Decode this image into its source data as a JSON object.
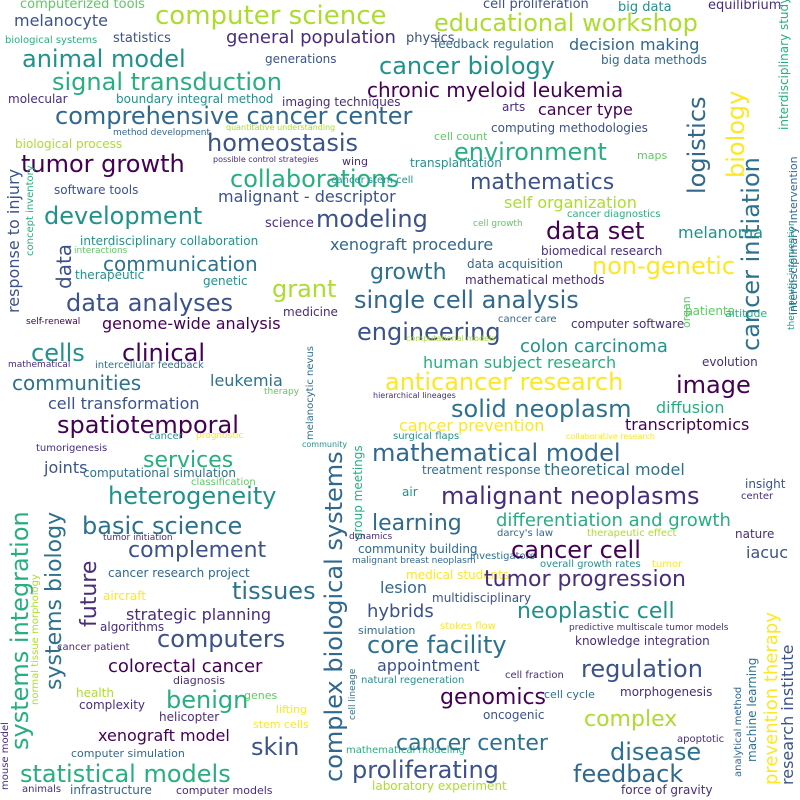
{
  "palette": {
    "dark_purple": "#440154",
    "indigo": "#472d7b",
    "blue": "#3b528b",
    "slate_blue": "#31688e",
    "teal_blue": "#2c728e",
    "teal": "#21918c",
    "green_teal": "#28ae80",
    "green": "#5ec962",
    "lime": "#addc30",
    "yellow": "#fde725"
  },
  "words": [
    {
      "text": "computerized tools"
    },
    {
      "text": "computer science"
    },
    {
      "text": "big data"
    },
    {
      "text": "cell proliferation"
    },
    {
      "text": "equilibrium"
    },
    {
      "text": "melanocyte"
    },
    {
      "text": "educational workshop"
    },
    {
      "text": "biological systems"
    },
    {
      "text": "statistics"
    },
    {
      "text": "general population"
    },
    {
      "text": "physics"
    },
    {
      "text": "feedback regulation"
    },
    {
      "text": "interdisciplinary study"
    },
    {
      "text": "animal model"
    },
    {
      "text": "decision making"
    },
    {
      "text": "generations"
    },
    {
      "text": "cancer biology"
    },
    {
      "text": "big data methods"
    },
    {
      "text": "signal transduction"
    },
    {
      "text": "chronic myeloid leukemia"
    },
    {
      "text": "molecular"
    },
    {
      "text": "boundary integral method"
    },
    {
      "text": "imaging techniques"
    },
    {
      "text": "comprehensive cancer center"
    },
    {
      "text": "arts"
    },
    {
      "text": "cancer type"
    },
    {
      "text": "quantitative understanding"
    },
    {
      "text": "method development"
    },
    {
      "text": "cell count"
    },
    {
      "text": "computing methodologies"
    },
    {
      "text": "biological process"
    },
    {
      "text": "homeostasis"
    },
    {
      "text": "environment"
    },
    {
      "text": "biology"
    },
    {
      "text": "maps"
    },
    {
      "text": "tumor growth"
    },
    {
      "text": "possible control strategies"
    },
    {
      "text": "wing"
    },
    {
      "text": "transplantation"
    },
    {
      "text": "logistics"
    },
    {
      "text": "cancer initiation"
    },
    {
      "text": "interdisciplinary intervention"
    },
    {
      "text": "collaborations"
    },
    {
      "text": "cancer stem cell"
    },
    {
      "text": "mathematics"
    },
    {
      "text": "response to injury"
    },
    {
      "text": "software tools"
    },
    {
      "text": "malignant - descriptor"
    },
    {
      "text": "concept inventory"
    },
    {
      "text": "self organization"
    },
    {
      "text": "development"
    },
    {
      "text": "modeling"
    },
    {
      "text": "cancer diagnostics"
    },
    {
      "text": "data set"
    },
    {
      "text": "science"
    },
    {
      "text": "cell growth"
    },
    {
      "text": "interdisciplinary collaboration"
    },
    {
      "text": "xenograft procedure"
    },
    {
      "text": "melanoma"
    },
    {
      "text": "interactions"
    },
    {
      "text": "biomedical research"
    },
    {
      "text": "communication"
    },
    {
      "text": "non-genetic"
    },
    {
      "text": "data"
    },
    {
      "text": "therapeutic"
    },
    {
      "text": "genetic"
    },
    {
      "text": "growth"
    },
    {
      "text": "data acquisition"
    },
    {
      "text": "grant"
    },
    {
      "text": "mathematical methods"
    },
    {
      "text": "organ"
    },
    {
      "text": "patients"
    },
    {
      "text": "therapeutic intervention"
    },
    {
      "text": "data analyses"
    },
    {
      "text": "single cell analysis"
    },
    {
      "text": "altitude"
    },
    {
      "text": "genome-wide analysis"
    },
    {
      "text": "self-renewal"
    },
    {
      "text": "medicine"
    },
    {
      "text": "cancer care"
    },
    {
      "text": "computer software"
    },
    {
      "text": "engineering"
    },
    {
      "text": "clinical"
    },
    {
      "text": "cells"
    },
    {
      "text": "computational models"
    },
    {
      "text": "colon carcinoma"
    },
    {
      "text": "mathematical"
    },
    {
      "text": "intercellular feedback"
    },
    {
      "text": "melanocytic nevus"
    },
    {
      "text": "human subject research"
    },
    {
      "text": "evolution"
    },
    {
      "text": "communities"
    },
    {
      "text": "leukemia"
    },
    {
      "text": "anticancer research"
    },
    {
      "text": "image"
    },
    {
      "text": "therapy"
    },
    {
      "text": "hierarchical lineages"
    },
    {
      "text": "cell transformation"
    },
    {
      "text": "complex biological systems"
    },
    {
      "text": "solid neoplasm"
    },
    {
      "text": "diffusion"
    },
    {
      "text": "spatiotemporal"
    },
    {
      "text": "cancer prevention"
    },
    {
      "text": "transcriptomics"
    },
    {
      "text": "surgical flaps"
    },
    {
      "text": "group meetings"
    },
    {
      "text": "cancer"
    },
    {
      "text": "prognostic"
    },
    {
      "text": "collaborative research"
    },
    {
      "text": "tumorigenesis"
    },
    {
      "text": "mathematical model"
    },
    {
      "text": "services"
    },
    {
      "text": "joints"
    },
    {
      "text": "community"
    },
    {
      "text": "theoretical model"
    },
    {
      "text": "computational simulation"
    },
    {
      "text": "classification"
    },
    {
      "text": "treatment response"
    },
    {
      "text": "insight"
    },
    {
      "text": "heterogeneity"
    },
    {
      "text": "air"
    },
    {
      "text": "malignant neoplasms"
    },
    {
      "text": "center"
    },
    {
      "text": "systems integration"
    },
    {
      "text": "basic science"
    },
    {
      "text": "learning"
    },
    {
      "text": "differentiation and growth"
    },
    {
      "text": "nature"
    },
    {
      "text": "tumor initiation"
    },
    {
      "text": "dynamics"
    },
    {
      "text": "darcy's law"
    },
    {
      "text": "therapeutic effect"
    },
    {
      "text": "complement"
    },
    {
      "text": "community building"
    },
    {
      "text": "investigators"
    },
    {
      "text": "cancer cell"
    },
    {
      "text": "iacuc"
    },
    {
      "text": "systems biology"
    },
    {
      "text": "malignant breast neoplasm"
    },
    {
      "text": "overall growth rates"
    },
    {
      "text": "tumor"
    },
    {
      "text": "normal tissue morphology"
    },
    {
      "text": "cancer research project"
    },
    {
      "text": "medical students"
    },
    {
      "text": "tumor progression"
    },
    {
      "text": "future"
    },
    {
      "text": "tissues"
    },
    {
      "text": "lesion"
    },
    {
      "text": "multidisciplinary"
    },
    {
      "text": "aircraft"
    },
    {
      "text": "strategic planning"
    },
    {
      "text": "hybrids"
    },
    {
      "text": "neoplastic cell"
    },
    {
      "text": "prevention therapy"
    },
    {
      "text": "research institute"
    },
    {
      "text": "algorithms"
    },
    {
      "text": "core facility"
    },
    {
      "text": "stokes flow"
    },
    {
      "text": "predictive multiscale tumor models"
    },
    {
      "text": "computers"
    },
    {
      "text": "simulation"
    },
    {
      "text": "knowledge integration"
    },
    {
      "text": "cancer patient"
    },
    {
      "text": "appointment"
    },
    {
      "text": "regulation"
    },
    {
      "text": "colorectal cancer"
    },
    {
      "text": "natural regeneration"
    },
    {
      "text": "diagnosis"
    },
    {
      "text": "genomics"
    },
    {
      "text": "cell fraction"
    },
    {
      "text": "health"
    },
    {
      "text": "genes"
    },
    {
      "text": "cell lineage"
    },
    {
      "text": "benign"
    },
    {
      "text": "cell cycle"
    },
    {
      "text": "morphogenesis"
    },
    {
      "text": "complexity"
    },
    {
      "text": "lifting"
    },
    {
      "text": "oncogenic"
    },
    {
      "text": "complex"
    },
    {
      "text": "helicopter"
    },
    {
      "text": "stem cells"
    },
    {
      "text": "analytical method"
    },
    {
      "text": "machine learning"
    },
    {
      "text": "xenograft model"
    },
    {
      "text": "apoptotic"
    },
    {
      "text": "mathematical modeling"
    },
    {
      "text": "skin"
    },
    {
      "text": "cancer center"
    },
    {
      "text": "disease"
    },
    {
      "text": "mouse model"
    },
    {
      "text": "computer simulation"
    },
    {
      "text": "statistical models"
    },
    {
      "text": "proliferating"
    },
    {
      "text": "feedback"
    },
    {
      "text": "animals"
    },
    {
      "text": "infrastructure"
    },
    {
      "text": "computer models"
    },
    {
      "text": "laboratory experiment"
    },
    {
      "text": "force of gravity"
    }
  ]
}
